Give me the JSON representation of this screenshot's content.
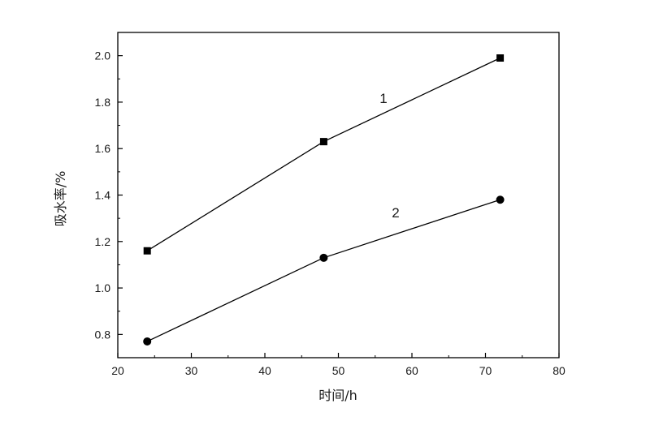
{
  "chart_data": {
    "type": "line",
    "xlabel": "时间/h",
    "ylabel": "吸水率/%",
    "xlim": [
      20,
      80
    ],
    "ylim": [
      0.7,
      2.1
    ],
    "xticks": [
      20,
      30,
      40,
      50,
      60,
      70,
      80
    ],
    "yticks": [
      0.8,
      1.0,
      1.2,
      1.4,
      1.6,
      1.8,
      2.0
    ],
    "x_tick_labels": [
      "20",
      "30",
      "40",
      "50",
      "60",
      "70",
      "80"
    ],
    "y_tick_labels": [
      "0.8",
      "1.0",
      "1.2",
      "1.4",
      "1.6",
      "1.8",
      "2.0"
    ],
    "grid": false,
    "legend": "none",
    "series": [
      {
        "label": "1",
        "marker": "square",
        "color": "#000000",
        "x": [
          24,
          48,
          72
        ],
        "y": [
          1.16,
          1.63,
          1.99
        ]
      },
      {
        "label": "2",
        "marker": "circle",
        "color": "#000000",
        "x": [
          24,
          48,
          72
        ],
        "y": [
          0.77,
          1.13,
          1.38
        ]
      }
    ]
  }
}
